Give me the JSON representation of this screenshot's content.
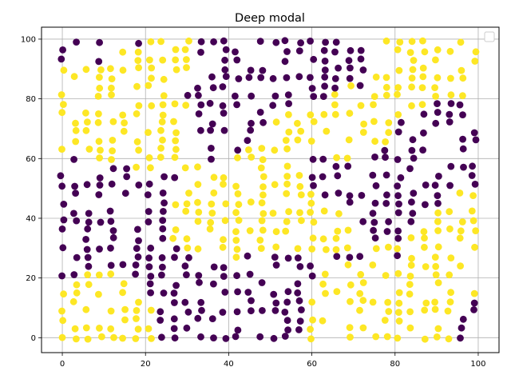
{
  "chart_data": {
    "type": "scatter",
    "title": "Deep modal",
    "xlabel": "",
    "ylabel": "",
    "xlim": [
      -5,
      105
    ],
    "ylim": [
      -5,
      104
    ],
    "xticks": [
      0,
      20,
      40,
      60,
      80,
      100
    ],
    "yticks": [
      0,
      20,
      40,
      60,
      80,
      100
    ],
    "grid": true,
    "legend": "top-right (empty)",
    "grid_step": 3,
    "point_note": "points lie on a regular lattice with slight jitter; class determined by region",
    "series": [
      {
        "color": "#440154",
        "label_class": 0
      },
      {
        "color": "#fde725",
        "label_class": 1
      }
    ]
  }
}
